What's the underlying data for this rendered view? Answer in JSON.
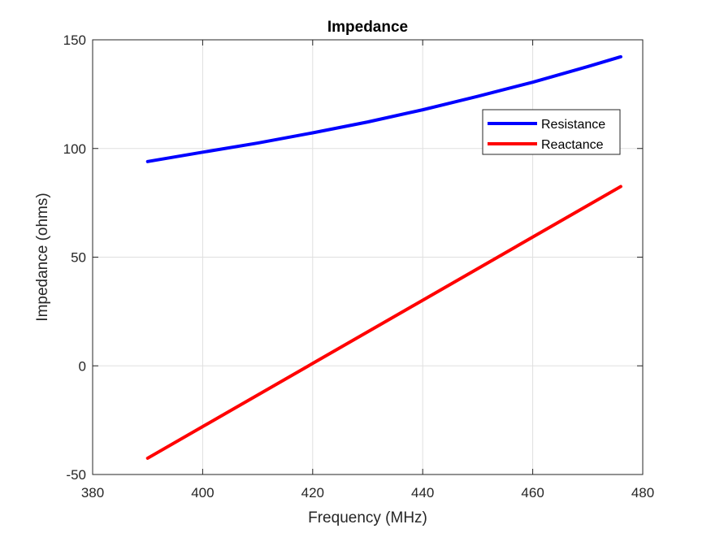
{
  "chart_data": {
    "type": "line",
    "title": "Impedance",
    "xlabel": "Frequency (MHz)",
    "ylabel": "Impedance (ohms)",
    "xlim": [
      380,
      480
    ],
    "ylim": [
      -50,
      150
    ],
    "xticks": [
      380,
      400,
      420,
      440,
      460,
      480
    ],
    "yticks": [
      -50,
      0,
      50,
      100,
      150
    ],
    "grid": true,
    "legend_position": "top-right",
    "series": [
      {
        "name": "Resistance",
        "color": "#0000ff",
        "x": [
          390,
          400,
          410,
          420,
          430,
          440,
          450,
          460,
          470,
          476
        ],
        "y": [
          94,
          98.3,
          102.5,
          107.2,
          112.2,
          117.8,
          124,
          130.5,
          137.7,
          142.2
        ]
      },
      {
        "name": "Reactance",
        "color": "#ff0000",
        "x": [
          390,
          476
        ],
        "y": [
          -42.5,
          82.5
        ]
      }
    ]
  }
}
